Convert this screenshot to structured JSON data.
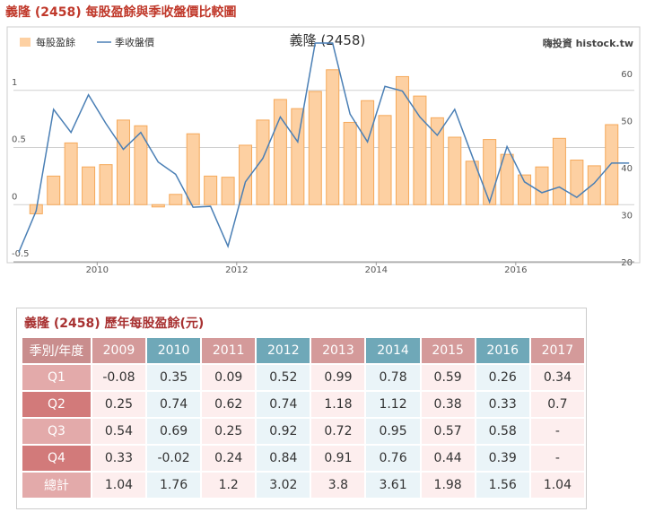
{
  "heading": "義隆 (2458) 每股盈餘與季收盤價比較圖",
  "chart_data": {
    "type": "bar",
    "title": "義隆 (2458)",
    "watermark": "嗨投資 histock.tw",
    "xlim": [
      2008.8,
      2017.7
    ],
    "xticks": [
      2010,
      2012,
      2014,
      2016
    ],
    "ylim": [
      -0.5,
      1.5
    ],
    "yticks": [
      -0.5,
      0,
      0.5,
      1
    ],
    "y2lim": [
      20,
      68.6
    ],
    "y2ticks": [
      20,
      30,
      40,
      50,
      60
    ],
    "grid": true,
    "legend": "top-left",
    "series": [
      {
        "name": "每股盈餘",
        "type": "bar",
        "color": "#fdd0a2",
        "edge_color": "#f5a95a",
        "x": [
          2009.125,
          2009.375,
          2009.625,
          2009.875,
          2010.125,
          2010.375,
          2010.625,
          2010.875,
          2011.125,
          2011.375,
          2011.625,
          2011.875,
          2012.125,
          2012.375,
          2012.625,
          2012.875,
          2013.125,
          2013.375,
          2013.625,
          2013.875,
          2014.125,
          2014.375,
          2014.625,
          2014.875,
          2015.125,
          2015.375,
          2015.625,
          2015.875,
          2016.125,
          2016.375,
          2016.625,
          2016.875,
          2017.125,
          2017.375
        ],
        "values": [
          -0.08,
          0.25,
          0.54,
          0.33,
          0.35,
          0.74,
          0.69,
          -0.02,
          0.09,
          0.62,
          0.25,
          0.24,
          0.52,
          0.74,
          0.92,
          0.84,
          0.99,
          1.18,
          0.72,
          0.91,
          0.78,
          1.12,
          0.95,
          0.76,
          0.59,
          0.38,
          0.57,
          0.44,
          0.26,
          0.33,
          0.58,
          0.39,
          0.34,
          0.7
        ]
      },
      {
        "name": "季收盤價",
        "type": "line",
        "axis": "y2",
        "color": "#4a7fb5",
        "x": [
          2008.875,
          2009.125,
          2009.375,
          2009.625,
          2009.875,
          2010.125,
          2010.375,
          2010.625,
          2010.875,
          2011.125,
          2011.375,
          2011.625,
          2011.875,
          2012.125,
          2012.375,
          2012.625,
          2012.875,
          2013.125,
          2013.375,
          2013.625,
          2013.875,
          2014.125,
          2014.375,
          2014.625,
          2014.875,
          2015.125,
          2015.375,
          2015.625,
          2015.875,
          2016.125,
          2016.375,
          2016.625,
          2016.875,
          2017.125,
          2017.375,
          2017.625
        ],
        "values": [
          22,
          30.8,
          52.4,
          47.5,
          55.5,
          49.4,
          43.9,
          47.5,
          41.2,
          38.6,
          31.6,
          31.8,
          23.3,
          37,
          42,
          50.8,
          45.5,
          66.5,
          66.5,
          51.4,
          45.5,
          57.3,
          56.3,
          50.8,
          46.9,
          52.4,
          42.5,
          32.7,
          44.5,
          37,
          34.7,
          35.9,
          33.7,
          36.7,
          41,
          41
        ]
      }
    ]
  },
  "table": {
    "title": "義隆 (2458) 歷年每股盈餘(元)",
    "header": [
      "季別/年度",
      "2009",
      "2010",
      "2011",
      "2012",
      "2013",
      "2014",
      "2015",
      "2016",
      "2017"
    ],
    "rows": [
      [
        "Q1",
        -0.08,
        0.35,
        0.09,
        0.52,
        0.99,
        0.78,
        0.59,
        0.26,
        0.34
      ],
      [
        "Q2",
        0.25,
        0.74,
        0.62,
        0.74,
        1.18,
        1.12,
        0.38,
        0.33,
        0.7
      ],
      [
        "Q3",
        0.54,
        0.69,
        0.25,
        0.92,
        0.72,
        0.95,
        0.57,
        0.58,
        "-"
      ],
      [
        "Q4",
        0.33,
        -0.02,
        0.24,
        0.84,
        0.91,
        0.76,
        0.44,
        0.39,
        "-"
      ],
      [
        "總計",
        1.04,
        1.76,
        1.2,
        3.02,
        3.8,
        3.61,
        1.98,
        1.56,
        1.04
      ]
    ]
  }
}
